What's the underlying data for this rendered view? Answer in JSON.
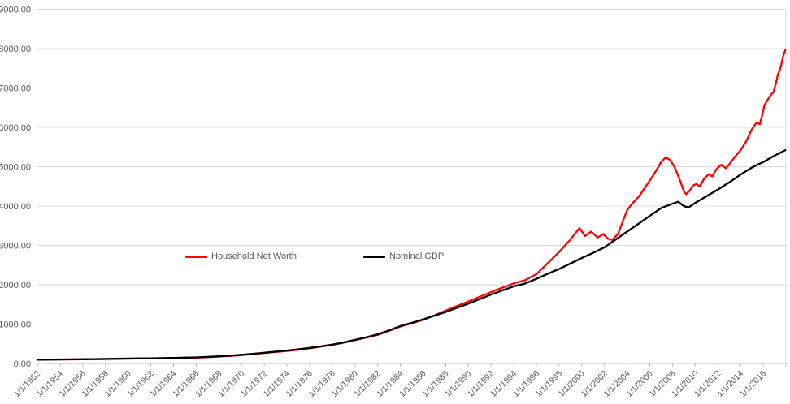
{
  "chart_data": {
    "type": "line",
    "title": "",
    "x_axis": {
      "domain_years": [
        1952,
        2018
      ],
      "tick_step_years": 2,
      "label_dates": [
        "1/1/1952",
        "1/1/1954",
        "1/1/1956",
        "1/1/1958",
        "1/1/1960",
        "1/1/1962",
        "1/1/1964",
        "1/1/1966",
        "1/1/1968",
        "1/1/1970",
        "1/1/1972",
        "1/1/1974",
        "1/1/1976",
        "1/1/1978",
        "1/1/1980",
        "1/1/1982",
        "1/1/1984",
        "1/1/1986",
        "1/1/1988",
        "1/1/1990",
        "1/1/1992",
        "1/1/1994",
        "1/1/1996",
        "1/1/1998",
        "1/1/2000",
        "1/1/2002",
        "1/1/2004",
        "1/1/2006",
        "1/1/2008",
        "1/1/2010",
        "1/1/2012",
        "1/1/2014",
        "1/1/2016"
      ]
    },
    "y_axis": {
      "min": 0,
      "max": 9000,
      "step": 1000,
      "tick_labels": [
        "0.00",
        "1000.00",
        "2000.00",
        "3000.00",
        "4000.00",
        "5000.00",
        "6000.00",
        "7000.00",
        "8000.00",
        "9000.00"
      ]
    },
    "grid": "horizontal",
    "legend_position": "inside-left-middle",
    "series": [
      {
        "name": "Household Net Worth",
        "color": "#FF0000",
        "points": [
          [
            1952,
            95
          ],
          [
            1953,
            100
          ],
          [
            1954,
            103
          ],
          [
            1955,
            106
          ],
          [
            1956,
            108
          ],
          [
            1957,
            112
          ],
          [
            1958,
            116
          ],
          [
            1959,
            121
          ],
          [
            1960,
            124
          ],
          [
            1961,
            129
          ],
          [
            1962,
            130
          ],
          [
            1963,
            134
          ],
          [
            1964,
            139
          ],
          [
            1965,
            144
          ],
          [
            1966,
            148
          ],
          [
            1967,
            160
          ],
          [
            1968,
            175
          ],
          [
            1969,
            192
          ],
          [
            1970,
            212
          ],
          [
            1971,
            240
          ],
          [
            1972,
            266
          ],
          [
            1973,
            292
          ],
          [
            1974,
            318
          ],
          [
            1975,
            348
          ],
          [
            1976,
            385
          ],
          [
            1977,
            428
          ],
          [
            1978,
            472
          ],
          [
            1979,
            528
          ],
          [
            1980,
            592
          ],
          [
            1981,
            658
          ],
          [
            1982,
            726
          ],
          [
            1983,
            828
          ],
          [
            1984,
            938
          ],
          [
            1985,
            1020
          ],
          [
            1986,
            1108
          ],
          [
            1987,
            1218
          ],
          [
            1988,
            1345
          ],
          [
            1989,
            1460
          ],
          [
            1990,
            1575
          ],
          [
            1991,
            1695
          ],
          [
            1992,
            1815
          ],
          [
            1993,
            1925
          ],
          [
            1994,
            2035
          ],
          [
            1995,
            2115
          ],
          [
            1996,
            2270
          ],
          [
            1997,
            2550
          ],
          [
            1998,
            2830
          ],
          [
            1999,
            3150
          ],
          [
            1999.8,
            3440
          ],
          [
            2000.3,
            3240
          ],
          [
            2000.8,
            3350
          ],
          [
            2001.4,
            3200
          ],
          [
            2001.9,
            3290
          ],
          [
            2002.3,
            3170
          ],
          [
            2002.7,
            3140
          ],
          [
            2003.2,
            3300
          ],
          [
            2003.6,
            3600
          ],
          [
            2004,
            3900
          ],
          [
            2004.5,
            4080
          ],
          [
            2005,
            4230
          ],
          [
            2005.5,
            4440
          ],
          [
            2006,
            4650
          ],
          [
            2006.5,
            4870
          ],
          [
            2007,
            5120
          ],
          [
            2007.4,
            5240
          ],
          [
            2007.8,
            5170
          ],
          [
            2008.2,
            4980
          ],
          [
            2008.6,
            4700
          ],
          [
            2009,
            4380
          ],
          [
            2009.2,
            4300
          ],
          [
            2009.5,
            4390
          ],
          [
            2009.8,
            4520
          ],
          [
            2010.1,
            4560
          ],
          [
            2010.4,
            4500
          ],
          [
            2010.8,
            4700
          ],
          [
            2011.2,
            4810
          ],
          [
            2011.5,
            4750
          ],
          [
            2011.9,
            4950
          ],
          [
            2012.3,
            5050
          ],
          [
            2012.7,
            4960
          ],
          [
            2013,
            5060
          ],
          [
            2013.5,
            5250
          ],
          [
            2014,
            5420
          ],
          [
            2014.5,
            5650
          ],
          [
            2015,
            5950
          ],
          [
            2015.4,
            6120
          ],
          [
            2015.7,
            6080
          ],
          [
            2015.9,
            6300
          ],
          [
            2016.1,
            6560
          ],
          [
            2016.6,
            6800
          ],
          [
            2016.9,
            6900
          ],
          [
            2017.1,
            7100
          ],
          [
            2017.3,
            7350
          ],
          [
            2017.5,
            7480
          ],
          [
            2017.75,
            7800
          ],
          [
            2017.95,
            7970
          ]
        ]
      },
      {
        "name": "Nominal GDP",
        "color": "#000000",
        "points": [
          [
            1952,
            95
          ],
          [
            1953,
            98
          ],
          [
            1954,
            100
          ],
          [
            1955,
            104
          ],
          [
            1956,
            107
          ],
          [
            1957,
            111
          ],
          [
            1958,
            114
          ],
          [
            1959,
            119
          ],
          [
            1960,
            123
          ],
          [
            1961,
            127
          ],
          [
            1962,
            132
          ],
          [
            1963,
            137
          ],
          [
            1964,
            142
          ],
          [
            1965,
            148
          ],
          [
            1966,
            155
          ],
          [
            1967,
            168
          ],
          [
            1968,
            182
          ],
          [
            1969,
            200
          ],
          [
            1970,
            220
          ],
          [
            1971,
            245
          ],
          [
            1972,
            272
          ],
          [
            1973,
            300
          ],
          [
            1974,
            330
          ],
          [
            1975,
            360
          ],
          [
            1976,
            395
          ],
          [
            1977,
            435
          ],
          [
            1978,
            480
          ],
          [
            1979,
            535
          ],
          [
            1980,
            600
          ],
          [
            1981,
            665
          ],
          [
            1982,
            740
          ],
          [
            1983,
            840
          ],
          [
            1984,
            950
          ],
          [
            1985,
            1030
          ],
          [
            1986,
            1120
          ],
          [
            1987,
            1215
          ],
          [
            1988,
            1310
          ],
          [
            1989,
            1415
          ],
          [
            1990,
            1520
          ],
          [
            1991,
            1635
          ],
          [
            1992,
            1750
          ],
          [
            1993,
            1855
          ],
          [
            1994,
            1960
          ],
          [
            1995,
            2030
          ],
          [
            1996,
            2150
          ],
          [
            1997,
            2280
          ],
          [
            1998,
            2400
          ],
          [
            1999,
            2540
          ],
          [
            2000,
            2680
          ],
          [
            2001,
            2810
          ],
          [
            2002,
            2950
          ],
          [
            2003,
            3150
          ],
          [
            2004,
            3350
          ],
          [
            2005,
            3550
          ],
          [
            2006,
            3750
          ],
          [
            2007,
            3950
          ],
          [
            2008,
            4060
          ],
          [
            2008.5,
            4110
          ],
          [
            2009,
            4000
          ],
          [
            2009.4,
            3960
          ],
          [
            2010,
            4080
          ],
          [
            2011,
            4250
          ],
          [
            2012,
            4420
          ],
          [
            2013,
            4600
          ],
          [
            2014,
            4800
          ],
          [
            2015,
            4980
          ],
          [
            2016,
            5120
          ],
          [
            2017,
            5280
          ],
          [
            2017.95,
            5420
          ]
        ]
      }
    ]
  },
  "legend": {
    "items": [
      {
        "label": "Household Net Worth",
        "color": "#FF0000"
      },
      {
        "label": "Nominal GDP",
        "color": "#000000"
      }
    ]
  },
  "colors": {
    "background": "#FFFFFF",
    "gridline": "#D9D9D9",
    "axis": "#BFBFBF",
    "text": "#595959"
  }
}
